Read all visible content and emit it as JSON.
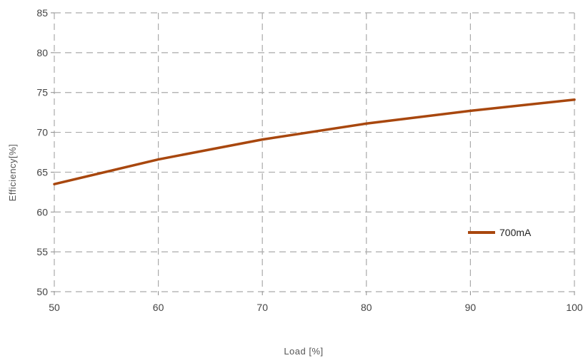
{
  "chart_data": {
    "type": "line",
    "title": "",
    "xlabel": "Load [%]",
    "ylabel": "Efficiency[%]",
    "x": [
      50,
      60,
      70,
      80,
      90,
      100
    ],
    "xlim": [
      50,
      100
    ],
    "ylim": [
      50,
      85
    ],
    "xticks": [
      "50",
      "60",
      "70",
      "80",
      "90",
      "100"
    ],
    "yticks": [
      "50",
      "55",
      "60",
      "65",
      "70",
      "75",
      "80",
      "85"
    ],
    "grid": true,
    "legend_position": "right",
    "series": [
      {
        "name": "700mA",
        "values": [
          63.5,
          66.6,
          69.1,
          71.1,
          72.7,
          74.1
        ],
        "color": "#A8470E"
      }
    ]
  }
}
